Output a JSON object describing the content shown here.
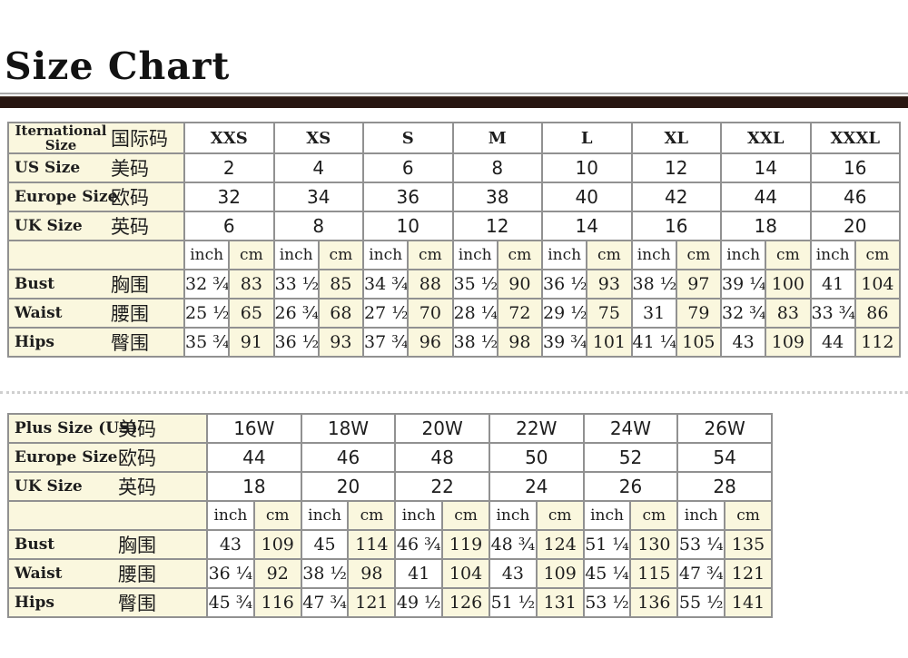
{
  "title": "Size Chart",
  "colors": {
    "cell_cream": "#FAF7DE",
    "bar_brown": "#281611",
    "border_gray": "#919191",
    "title_black": "#121212"
  },
  "tables": [
    {
      "name": "standard-size-table",
      "size_count": 8,
      "rows": [
        {
          "kind": "header",
          "en_lines": [
            "Iternational",
            "Size"
          ],
          "zh": "国际码",
          "cells": [
            "XXS",
            "XS",
            "S",
            "M",
            "L",
            "XL",
            "XXL",
            "XXXL"
          ]
        },
        {
          "kind": "size",
          "en": "US Size",
          "zh": "美码",
          "cells": [
            "2",
            "4",
            "6",
            "8",
            "10",
            "12",
            "14",
            "16"
          ]
        },
        {
          "kind": "size",
          "en": "Europe Size",
          "zh": "欧码",
          "cells": [
            "32",
            "34",
            "36",
            "38",
            "40",
            "42",
            "44",
            "46"
          ]
        },
        {
          "kind": "size",
          "en": "UK Size",
          "zh": "英码",
          "cells": [
            "6",
            "8",
            "10",
            "12",
            "14",
            "16",
            "18",
            "20"
          ]
        },
        {
          "kind": "units",
          "en": "",
          "zh": "",
          "inch_label": "inch",
          "cm_label": "cm"
        },
        {
          "kind": "measure",
          "en": "Bust",
          "zh": "胸围",
          "inch": [
            "32 ¾",
            "33 ½",
            "34 ¾",
            "35 ½",
            "36 ½",
            "38 ½",
            "39 ¼",
            "41"
          ],
          "cm": [
            "83",
            "85",
            "88",
            "90",
            "93",
            "97",
            "100",
            "104"
          ]
        },
        {
          "kind": "measure",
          "en": "Waist",
          "zh": "腰围",
          "inch": [
            "25 ½",
            "26 ¾",
            "27 ½",
            "28 ¼",
            "29 ½",
            "31",
            "32 ¾",
            "33 ¾"
          ],
          "cm": [
            "65",
            "68",
            "70",
            "72",
            "75",
            "79",
            "83",
            "86"
          ]
        },
        {
          "kind": "measure",
          "en": "Hips",
          "zh": "臀围",
          "inch": [
            "35 ¾",
            "36 ½",
            "37 ¾",
            "38 ½",
            "39 ¾",
            "41 ¼",
            "43",
            "44"
          ],
          "cm": [
            "91",
            "93",
            "96",
            "98",
            "101",
            "105",
            "109",
            "112"
          ]
        }
      ]
    },
    {
      "name": "plus-size-table",
      "size_count": 6,
      "rows": [
        {
          "kind": "size",
          "en": "Plus Size (US)",
          "zh": "美码",
          "cells": [
            "16W",
            "18W",
            "20W",
            "22W",
            "24W",
            "26W"
          ]
        },
        {
          "kind": "size",
          "en": "Europe Size",
          "zh": "欧码",
          "cells": [
            "44",
            "46",
            "48",
            "50",
            "52",
            "54"
          ]
        },
        {
          "kind": "size",
          "en": "UK Size",
          "zh": "英码",
          "cells": [
            "18",
            "20",
            "22",
            "24",
            "26",
            "28"
          ]
        },
        {
          "kind": "units",
          "en": "",
          "zh": "",
          "inch_label": "inch",
          "cm_label": "cm"
        },
        {
          "kind": "measure",
          "en": "Bust",
          "zh": "胸围",
          "inch": [
            "43",
            "45",
            "46 ¾",
            "48 ¾",
            "51 ¼",
            "53 ¼"
          ],
          "cm": [
            "109",
            "114",
            "119",
            "124",
            "130",
            "135"
          ]
        },
        {
          "kind": "measure",
          "en": "Waist",
          "zh": "腰围",
          "inch": [
            "36 ¼",
            "38 ½",
            "41",
            "43",
            "45 ¼",
            "47 ¾"
          ],
          "cm": [
            "92",
            "98",
            "104",
            "109",
            "115",
            "121"
          ]
        },
        {
          "kind": "measure",
          "en": "Hips",
          "zh": "臀围",
          "inch": [
            "45 ¾",
            "47 ¾",
            "49 ½",
            "51 ½",
            "53 ½",
            "55 ½"
          ],
          "cm": [
            "116",
            "121",
            "126",
            "131",
            "136",
            "141"
          ]
        }
      ]
    }
  ]
}
